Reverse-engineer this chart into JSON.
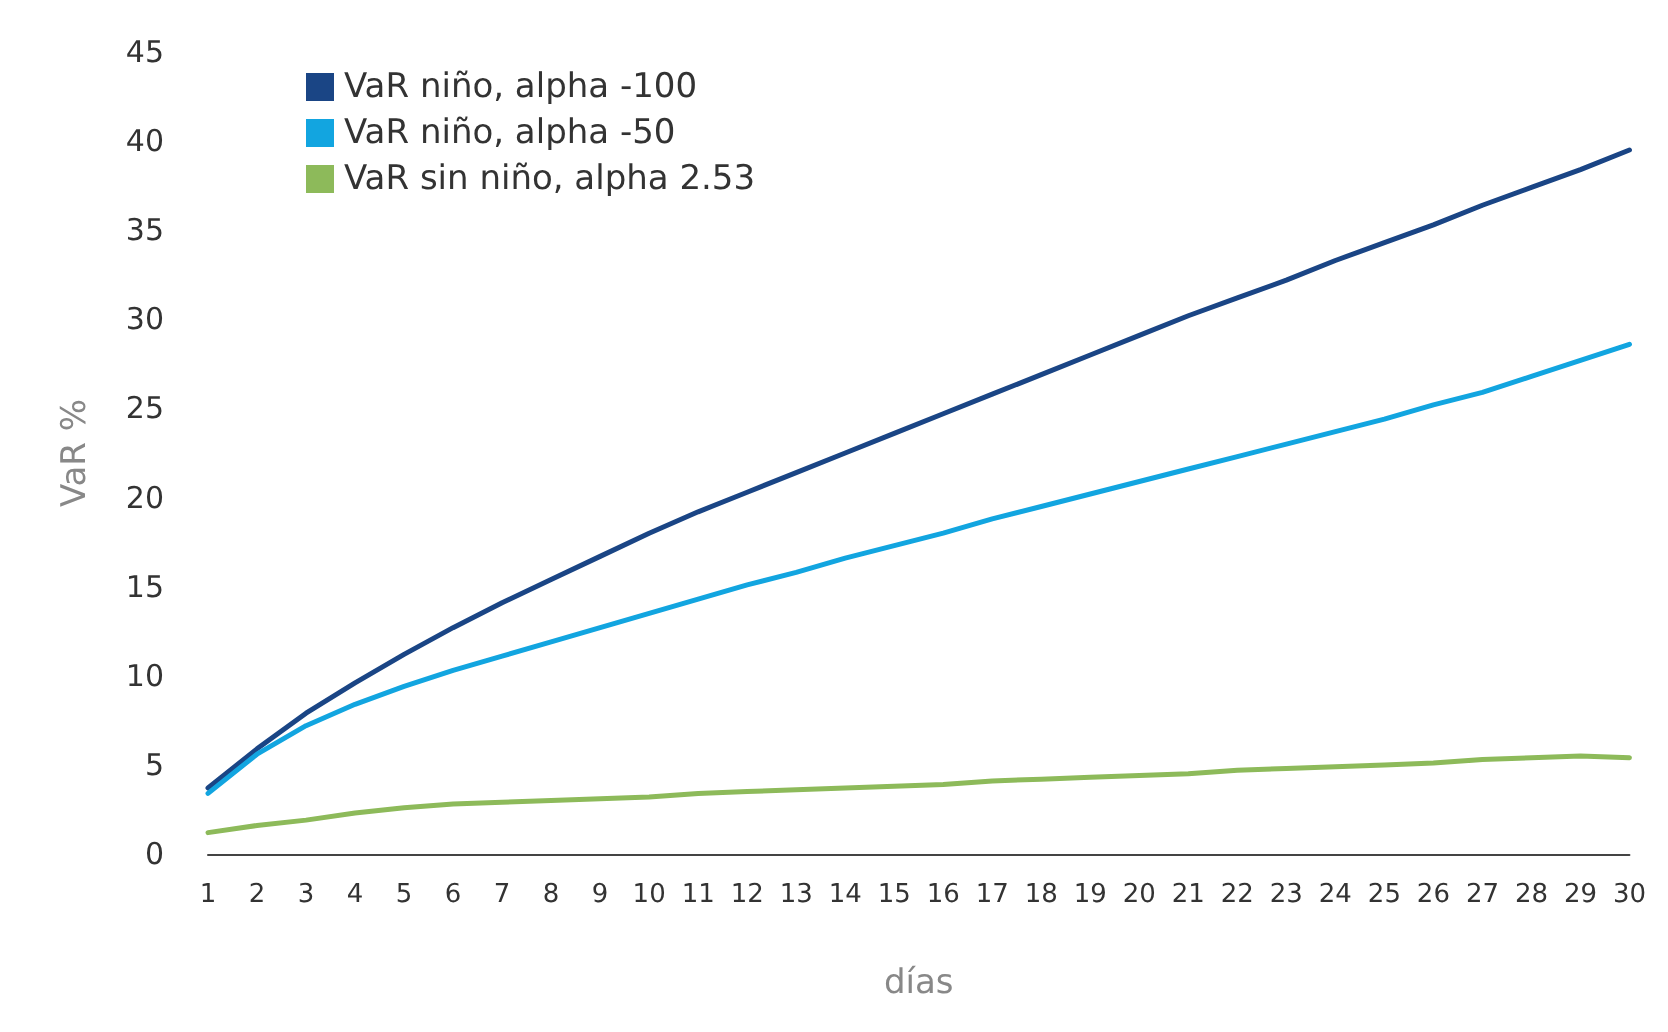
{
  "chart_data": {
    "type": "line",
    "xlabel": "días",
    "ylabel": "VaR %",
    "x": [
      1,
      2,
      3,
      4,
      5,
      6,
      7,
      8,
      9,
      10,
      11,
      12,
      13,
      14,
      15,
      16,
      17,
      18,
      19,
      20,
      21,
      22,
      23,
      24,
      25,
      26,
      27,
      28,
      29,
      30
    ],
    "xlim": [
      1,
      30
    ],
    "xticks": [
      1,
      2,
      3,
      4,
      5,
      6,
      7,
      8,
      9,
      10,
      11,
      12,
      13,
      14,
      15,
      16,
      17,
      18,
      19,
      20,
      21,
      22,
      23,
      24,
      25,
      26,
      27,
      28,
      29,
      30
    ],
    "series": [
      {
        "name": "VaR niño, alpha -100",
        "color": "#1a4585",
        "values": [
          3.7,
          5.9,
          7.9,
          9.6,
          11.2,
          12.7,
          14.1,
          15.4,
          16.7,
          18.0,
          19.2,
          20.3,
          21.4,
          22.5,
          23.6,
          24.7,
          25.8,
          26.9,
          28.0,
          29.1,
          30.2,
          31.2,
          32.2,
          33.3,
          34.3,
          35.3,
          36.4,
          37.4,
          38.4,
          39.5
        ]
      },
      {
        "name": "VaR niño, alpha -50",
        "color": "#12a5e0",
        "values": [
          3.4,
          5.6,
          7.2,
          8.4,
          9.4,
          10.3,
          11.1,
          11.9,
          12.7,
          13.5,
          14.3,
          15.1,
          15.8,
          16.6,
          17.3,
          18.0,
          18.8,
          19.5,
          20.2,
          20.9,
          21.6,
          22.3,
          23.0,
          23.7,
          24.4,
          25.2,
          25.9,
          26.8,
          27.7,
          28.6
        ]
      },
      {
        "name": "VaR sin niño, alpha 2.53",
        "color": "#8dba5a",
        "values": [
          1.2,
          1.6,
          1.9,
          2.3,
          2.6,
          2.8,
          2.9,
          3.0,
          3.1,
          3.2,
          3.4,
          3.5,
          3.6,
          3.7,
          3.8,
          3.9,
          4.1,
          4.2,
          4.3,
          4.4,
          4.5,
          4.7,
          4.8,
          4.9,
          5.0,
          5.1,
          5.3,
          5.4,
          5.5,
          5.4
        ]
      }
    ],
    "ylim": [
      0,
      45
    ],
    "yticks": [
      0,
      5,
      10,
      15,
      20,
      25,
      30,
      35,
      40,
      45
    ],
    "grid": false,
    "legend": "top left",
    "marker": "none",
    "line_style": "solid"
  }
}
